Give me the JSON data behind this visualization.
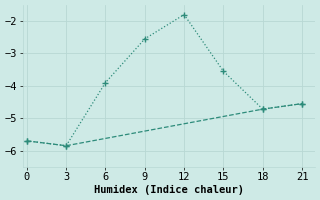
{
  "line1_x": [
    0,
    3,
    6,
    9,
    12,
    15,
    18,
    21
  ],
  "line1_y": [
    -5.7,
    -5.85,
    -3.9,
    -2.55,
    -1.8,
    -3.55,
    -4.72,
    -4.55
  ],
  "line2_x": [
    0,
    3,
    18,
    21
  ],
  "line2_y": [
    -5.7,
    -5.85,
    -4.72,
    -4.55
  ],
  "line_color": "#2d8b7a",
  "bg_color": "#ceeae6",
  "grid_color": "#b8d8d4",
  "xlabel": "Humidex (Indice chaleur)",
  "xticks": [
    0,
    3,
    6,
    9,
    12,
    15,
    18,
    21
  ],
  "yticks": [
    -6,
    -5,
    -4,
    -3,
    -2
  ],
  "xlim": [
    -0.3,
    22.0
  ],
  "ylim": [
    -6.5,
    -1.5
  ],
  "xlabel_fontsize": 7.5,
  "tick_fontsize": 7.5,
  "marker": "+"
}
